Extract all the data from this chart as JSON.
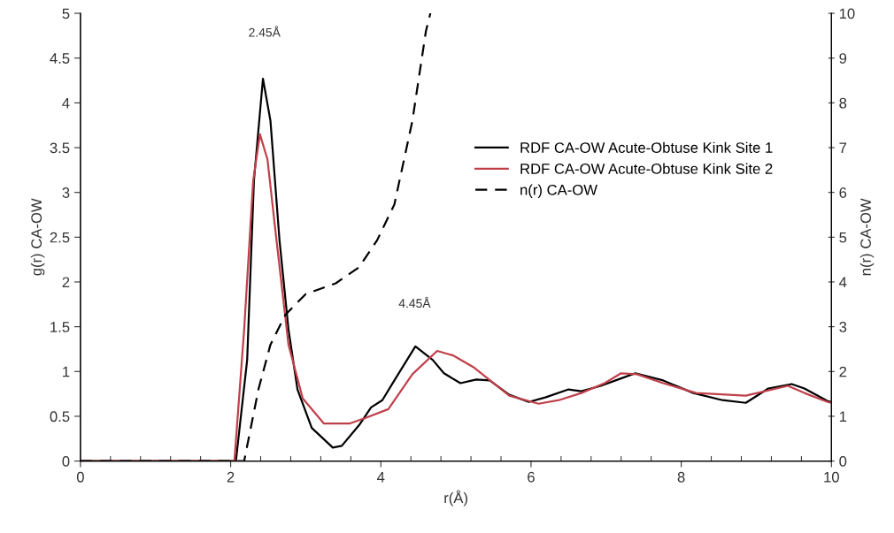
{
  "chart_data": {
    "type": "line",
    "xlabel": "r(Å)",
    "ylabel": "g(r) CA-OW",
    "y2label": "n(r) CA-OW",
    "xlim": [
      0,
      10
    ],
    "xticks": [
      0,
      2,
      4,
      6,
      8,
      10
    ],
    "ylim": [
      0,
      5
    ],
    "yticks": [
      0,
      0.5,
      1,
      1.5,
      2,
      2.5,
      3,
      3.5,
      4,
      4.5,
      5
    ],
    "y2lim": [
      0,
      10
    ],
    "y2ticks": [
      0,
      1,
      2,
      3,
      4,
      5,
      6,
      7,
      8,
      9,
      10
    ],
    "grid": false,
    "legend": "right",
    "marker": "none",
    "annotations": [
      "2.45Å",
      "4.45Å"
    ],
    "series": [
      {
        "name": "RDF CA-OW Acute-Obtuse Kink Site 1",
        "color": "#000000",
        "line_style": "solid",
        "x": [
          0,
          2.07,
          2.22,
          2.31,
          2.43,
          2.53,
          2.65,
          2.77,
          2.89,
          3.08,
          3.36,
          3.48,
          3.71,
          3.87,
          4.02,
          4.18,
          4.46,
          4.69,
          4.84,
          5.06,
          5.27,
          5.45,
          5.71,
          5.97,
          6.19,
          6.5,
          6.67,
          6.93,
          7.19,
          7.39,
          7.76,
          8.16,
          8.55,
          8.86,
          9.16,
          9.47,
          9.64,
          9.95,
          10
        ],
        "values": [
          0,
          0,
          1.13,
          3.13,
          4.27,
          3.8,
          2.47,
          1.47,
          0.8,
          0.37,
          0.15,
          0.17,
          0.4,
          0.6,
          0.68,
          0.9,
          1.28,
          1.13,
          0.98,
          0.87,
          0.91,
          0.9,
          0.74,
          0.66,
          0.71,
          0.8,
          0.78,
          0.84,
          0.92,
          0.98,
          0.9,
          0.76,
          0.68,
          0.65,
          0.81,
          0.86,
          0.81,
          0.67,
          0.66
        ]
      },
      {
        "name": "RDF CA-OW Acute-Obtuse Kink Site 2",
        "color": "#c0404a",
        "line_style": "solid",
        "x": [
          0,
          2.05,
          2.18,
          2.3,
          2.39,
          2.49,
          2.61,
          2.77,
          2.96,
          3.24,
          3.59,
          3.79,
          4.1,
          4.42,
          4.75,
          4.96,
          5.23,
          5.71,
          6.1,
          6.37,
          6.67,
          6.98,
          7.2,
          7.41,
          7.76,
          8.2,
          8.86,
          9.42,
          9.64,
          9.95,
          10
        ],
        "values": [
          0,
          0,
          1.47,
          3.13,
          3.65,
          3.37,
          2.47,
          1.3,
          0.7,
          0.42,
          0.42,
          0.48,
          0.58,
          0.97,
          1.23,
          1.18,
          1.05,
          0.73,
          0.64,
          0.68,
          0.76,
          0.87,
          0.98,
          0.97,
          0.87,
          0.76,
          0.73,
          0.84,
          0.76,
          0.66,
          0.65
        ]
      },
      {
        "name": "n(r) CA-OW",
        "color": "#000000",
        "line_style": "dashed",
        "axis": "y2",
        "x": [
          0,
          2.18,
          2.37,
          2.53,
          2.73,
          3.0,
          3.4,
          3.71,
          3.95,
          4.18,
          4.42,
          4.6,
          4.66
        ],
        "values": [
          0,
          0,
          1.6,
          2.6,
          3.27,
          3.73,
          3.97,
          4.33,
          4.93,
          5.73,
          7.6,
          9.6,
          10
        ]
      }
    ]
  }
}
